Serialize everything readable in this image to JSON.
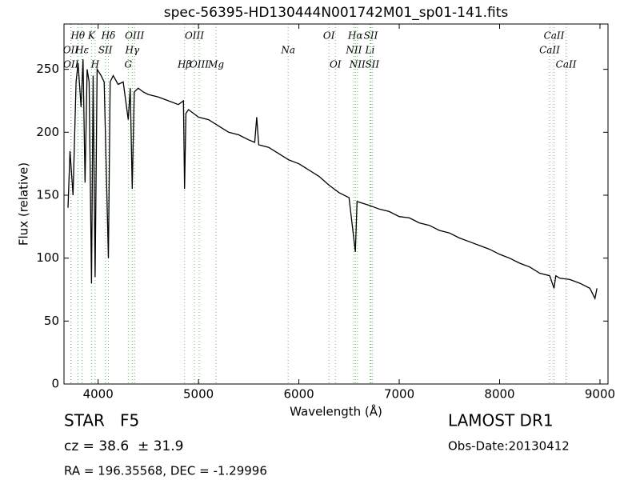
{
  "chart_data": {
    "type": "line",
    "title": "spec-56395-HD130444N001742M01_sp01-141.fits",
    "xlabel": "Wavelength (Å)",
    "ylabel": "Flux (relative)",
    "xlim": [
      3660,
      9080
    ],
    "xticks": [
      4000,
      5000,
      6000,
      7000,
      8000,
      9000
    ],
    "ylim": [
      0,
      286
    ],
    "yticks": [
      0,
      50,
      100,
      150,
      200,
      250
    ],
    "x": [
      3700,
      3720,
      3750,
      3780,
      3800,
      3830,
      3850,
      3870,
      3890,
      3910,
      3934,
      3950,
      3970,
      3990,
      4030,
      4060,
      4102,
      4120,
      4150,
      4200,
      4250,
      4300,
      4320,
      4340,
      4360,
      4400,
      4450,
      4500,
      4600,
      4700,
      4800,
      4850,
      4861,
      4875,
      4900,
      5000,
      5100,
      5200,
      5300,
      5400,
      5500,
      5560,
      5580,
      5600,
      5700,
      5800,
      5900,
      6000,
      6100,
      6200,
      6300,
      6400,
      6500,
      6563,
      6580,
      6700,
      6800,
      6900,
      7000,
      7100,
      7200,
      7300,
      7400,
      7500,
      7600,
      7700,
      7800,
      7900,
      8000,
      8100,
      8200,
      8300,
      8400,
      8500,
      8542,
      8560,
      8600,
      8700,
      8800,
      8900,
      8950,
      8970
    ],
    "series": [
      {
        "color": "#000000",
        "values": [
          140,
          185,
          150,
          240,
          255,
          220,
          258,
          160,
          250,
          240,
          80,
          245,
          85,
          250,
          245,
          240,
          100,
          240,
          245,
          238,
          240,
          210,
          235,
          155,
          232,
          235,
          232,
          230,
          228,
          225,
          222,
          225,
          155,
          215,
          218,
          212,
          210,
          205,
          200,
          198,
          194,
          192,
          212,
          190,
          188,
          183,
          178,
          175,
          170,
          165,
          158,
          152,
          148,
          105,
          145,
          142,
          139,
          137,
          133,
          132,
          128,
          126,
          122,
          120,
          116,
          113,
          110,
          107,
          103,
          100,
          96,
          93,
          88,
          86,
          76,
          86,
          84,
          83,
          80,
          76,
          68,
          76
        ]
      }
    ],
    "line_color": "#66bb66",
    "annotations": [
      {
        "label": "Hθ",
        "x": 3798,
        "row": 0
      },
      {
        "label": "K",
        "x": 3934,
        "row": 0
      },
      {
        "label": "Hδ",
        "x": 4102,
        "row": 0
      },
      {
        "label": "OIII",
        "x": 4363,
        "row": 0
      },
      {
        "label": "OIII",
        "x": 4959,
        "row": 0
      },
      {
        "label": "OI",
        "x": 6300,
        "row": 0
      },
      {
        "label": "Hα",
        "x": 6563,
        "row": 0
      },
      {
        "label": "SII",
        "x": 6717,
        "row": 0
      },
      {
        "label": "CaII",
        "x": 8542,
        "row": 0
      },
      {
        "label": "OII",
        "x": 3727,
        "row": 1
      },
      {
        "label": "Hε",
        "x": 3840,
        "row": 1
      },
      {
        "label": "SII",
        "x": 4072,
        "row": 1
      },
      {
        "label": "Hγ",
        "x": 4340,
        "row": 1
      },
      {
        "label": "Na",
        "x": 5893,
        "row": 1
      },
      {
        "label": "NII",
        "x": 6548,
        "row": 1
      },
      {
        "label": "Li",
        "x": 6708,
        "row": 1
      },
      {
        "label": "CaII",
        "x": 8498,
        "row": 1
      },
      {
        "label": "OII",
        "x": 3729,
        "row": 2
      },
      {
        "label": "H",
        "x": 3970,
        "row": 2
      },
      {
        "label": "G",
        "x": 4300,
        "row": 2
      },
      {
        "label": "Hβ",
        "x": 4861,
        "row": 2
      },
      {
        "label": "OIII",
        "x": 5007,
        "row": 2
      },
      {
        "label": "Mg",
        "x": 5175,
        "row": 2
      },
      {
        "label": "OI",
        "x": 6364,
        "row": 2
      },
      {
        "label": "NII",
        "x": 6583,
        "row": 2
      },
      {
        "label": "SII",
        "x": 6731,
        "row": 2
      },
      {
        "label": "CaII",
        "x": 8662,
        "row": 2
      }
    ],
    "info": {
      "class": "STAR   F5",
      "cz": "cz = 38.6  ± 31.9",
      "coords": "RA = 196.35568, DEC = -1.29996",
      "survey": "LAMOST DR1",
      "date": "Obs-Date:20130412"
    }
  }
}
